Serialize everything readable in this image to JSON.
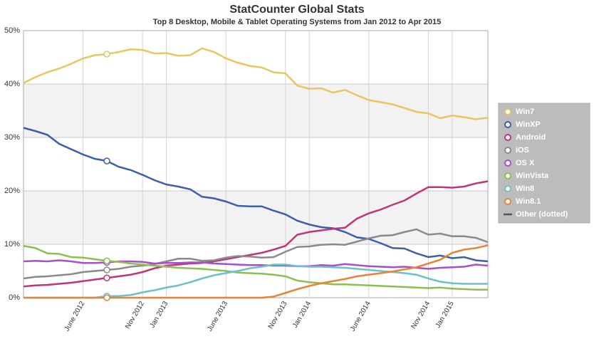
{
  "chart_data": {
    "type": "line",
    "title": "StatCounter Global Stats",
    "subtitle": "Top 8 Desktop, Mobile & Tablet Operating Systems from Jan 2012 to Apr 2015",
    "categories": [
      null,
      null,
      null,
      null,
      null,
      "June 2012",
      null,
      null,
      null,
      null,
      "Nov 2012",
      null,
      "Jan 2013",
      null,
      null,
      null,
      null,
      "June 2013",
      null,
      null,
      null,
      null,
      "Nov 2013",
      null,
      "Jan 2014",
      null,
      null,
      null,
      null,
      "June 2014",
      null,
      null,
      null,
      null,
      "Nov 2014",
      null,
      "Jan 2015",
      null,
      null,
      null
    ],
    "ylim": [
      0,
      50
    ],
    "yticks": [
      {
        "value": 0,
        "label": "0%"
      },
      {
        "value": 10,
        "label": "10%"
      },
      {
        "value": 20,
        "label": "20%"
      },
      {
        "value": 30,
        "label": "30%"
      },
      {
        "value": 40,
        "label": "40%"
      },
      {
        "value": 50,
        "label": "50%"
      }
    ],
    "grid": true,
    "legend": "right",
    "legend_note": {
      "name": "Other (dotted)",
      "color": "#555555"
    },
    "series": [
      {
        "name": "Win7",
        "color": "#e8c660",
        "values": [
          40.2,
          41.3,
          42.2,
          42.9,
          43.8,
          44.8,
          45.4,
          45.6,
          46.0,
          46.5,
          46.4,
          45.7,
          45.8,
          45.3,
          45.4,
          46.7,
          46.0,
          44.8,
          44.0,
          43.4,
          43.1,
          42.2,
          42.0,
          39.7,
          39.1,
          39.2,
          38.4,
          38.9,
          37.9,
          37.0,
          36.6,
          36.2,
          35.5,
          34.8,
          34.5,
          33.6,
          34.1,
          33.8,
          33.4,
          33.7
        ]
      },
      {
        "name": "WinXP",
        "color": "#3d5ea8",
        "values": [
          31.8,
          31.2,
          30.5,
          28.8,
          27.8,
          26.8,
          26.0,
          25.6,
          24.5,
          23.9,
          23.0,
          22.0,
          21.2,
          20.8,
          20.3,
          18.9,
          18.6,
          18.0,
          17.2,
          17.1,
          17.1,
          16.3,
          15.6,
          14.4,
          13.7,
          13.2,
          13.0,
          12.3,
          11.3,
          11.0,
          10.2,
          9.3,
          9.2,
          8.3,
          7.6,
          7.9,
          7.4,
          7.6,
          7.0,
          6.8
        ]
      },
      {
        "name": "Android",
        "color": "#c0357a",
        "values": [
          2.1,
          2.3,
          2.4,
          2.6,
          2.8,
          3.1,
          3.4,
          3.7,
          4.0,
          4.3,
          4.8,
          5.5,
          6.0,
          6.2,
          6.4,
          6.5,
          6.8,
          7.2,
          7.6,
          8.0,
          8.4,
          9.0,
          9.7,
          11.8,
          12.3,
          12.6,
          12.9,
          13.1,
          14.8,
          15.8,
          16.5,
          17.4,
          18.2,
          19.5,
          20.7,
          20.7,
          20.6,
          20.8,
          21.4,
          21.8
        ]
      },
      {
        "name": "iOS",
        "color": "#8a8a8a",
        "values": [
          3.6,
          3.9,
          4.0,
          4.2,
          4.4,
          4.8,
          5.0,
          5.2,
          5.4,
          5.8,
          6.0,
          6.3,
          6.8,
          7.3,
          7.3,
          6.9,
          7.0,
          7.5,
          7.8,
          7.7,
          7.5,
          7.6,
          8.6,
          9.5,
          9.6,
          9.9,
          10.0,
          9.9,
          10.5,
          11.1,
          11.6,
          11.7,
          12.3,
          12.8,
          11.8,
          12.0,
          11.5,
          11.5,
          11.2,
          10.4
        ]
      },
      {
        "name": "OS X",
        "color": "#a94ecb",
        "values": [
          6.8,
          6.9,
          6.8,
          7.0,
          6.8,
          6.5,
          6.5,
          6.6,
          6.8,
          6.8,
          6.7,
          6.4,
          6.5,
          6.5,
          6.6,
          6.6,
          6.4,
          6.3,
          6.2,
          6.1,
          6.1,
          6.0,
          6.0,
          5.9,
          5.9,
          6.1,
          6.0,
          6.3,
          6.1,
          5.9,
          5.8,
          5.7,
          5.8,
          5.6,
          5.4,
          5.6,
          5.7,
          5.8,
          6.2,
          6.0
        ]
      },
      {
        "name": "WinVista",
        "color": "#8dbf4f",
        "values": [
          9.7,
          9.3,
          8.3,
          8.2,
          7.6,
          7.5,
          7.2,
          6.9,
          6.7,
          6.4,
          6.2,
          6.0,
          5.8,
          5.6,
          5.5,
          5.4,
          5.2,
          5.0,
          4.7,
          4.6,
          4.5,
          4.3,
          4.0,
          3.2,
          2.9,
          2.7,
          2.5,
          2.5,
          2.4,
          2.3,
          2.2,
          2.1,
          2.0,
          1.9,
          1.8,
          1.9,
          1.7,
          1.6,
          1.5,
          1.5
        ]
      },
      {
        "name": "Win8",
        "color": "#6ec0c8",
        "values": [
          0,
          0,
          0,
          0,
          0,
          0,
          0,
          0.3,
          0.3,
          0.5,
          1.0,
          1.4,
          1.9,
          2.3,
          2.9,
          3.6,
          4.2,
          4.6,
          5.0,
          5.5,
          5.8,
          6.2,
          6.2,
          5.9,
          5.8,
          5.8,
          5.7,
          5.6,
          5.4,
          5.2,
          5.0,
          4.8,
          4.6,
          4.3,
          3.6,
          3.0,
          2.7,
          2.6,
          2.6,
          2.6
        ]
      },
      {
        "name": "Win8.1",
        "color": "#e8833a",
        "values": [
          0,
          0,
          0,
          0,
          0,
          0,
          0,
          0,
          0,
          0,
          0,
          0,
          0,
          0,
          0,
          0,
          0,
          0,
          0,
          0,
          0,
          0.2,
          0.9,
          1.6,
          2.2,
          2.7,
          3.1,
          3.5,
          4.0,
          4.3,
          4.6,
          4.9,
          5.3,
          5.7,
          6.4,
          7.1,
          8.4,
          9.0,
          9.3,
          9.8
        ]
      }
    ]
  }
}
